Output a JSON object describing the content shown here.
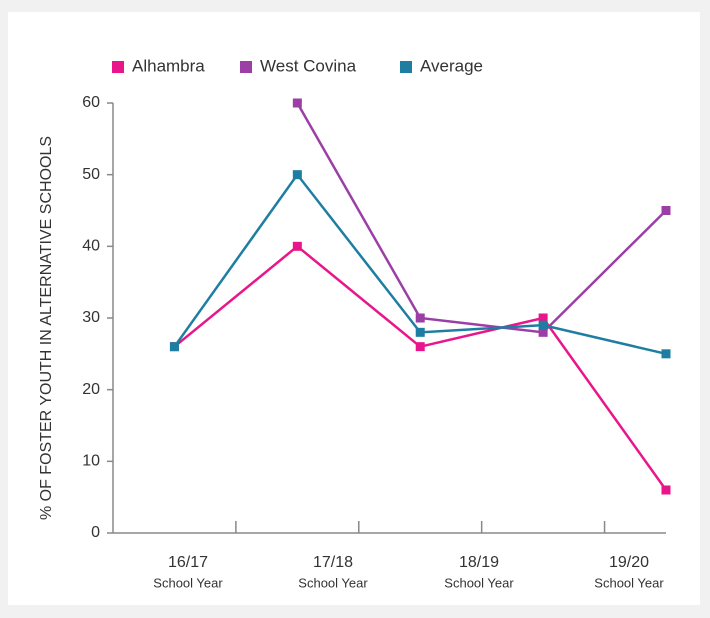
{
  "chart_data": {
    "type": "line",
    "y_label": "% OF FOSTER YOUTH IN ALTERNATIVE SCHOOLS",
    "x": [
      0,
      1,
      2,
      3,
      4
    ],
    "xlim": [
      -0.5,
      4
    ],
    "xticks": [
      0.5,
      1.5,
      2.5,
      3.5
    ],
    "x_labels": [
      {
        "label": "16/17",
        "sublabel": "School Year"
      },
      {
        "label": "17/18",
        "sublabel": "School Year"
      },
      {
        "label": "18/19",
        "sublabel": "School Year"
      },
      {
        "label": "19/20",
        "sublabel": "School Year"
      }
    ],
    "ylim": [
      0,
      60
    ],
    "yticks": [
      0,
      10,
      20,
      30,
      40,
      50,
      60
    ],
    "series": [
      {
        "name": "Alhambra",
        "color": "#e8168a",
        "values": [
          26,
          40,
          26,
          30,
          6
        ]
      },
      {
        "name": "West Covina",
        "color": "#9b3fa6",
        "values": [
          null,
          60,
          30,
          28,
          45
        ]
      },
      {
        "name": "Average",
        "color": "#1e7ea1",
        "values": [
          26,
          50,
          28,
          29,
          25
        ]
      }
    ]
  }
}
